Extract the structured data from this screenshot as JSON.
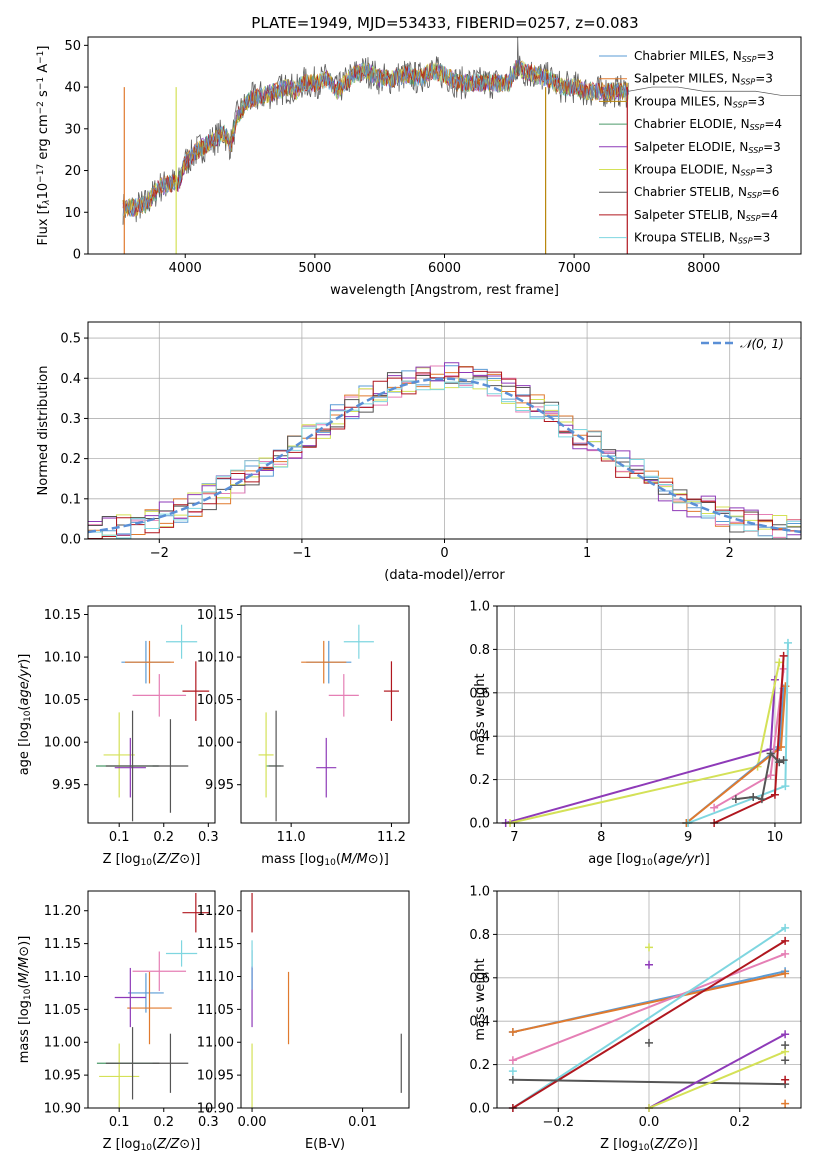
{
  "figure": {
    "title": "PLATE=1949, MJD=53433, FIBERID=0257, z=0.083"
  },
  "colors": {
    "Chabrier MILES": "#5a9bd5",
    "Salpeter MILES": "#e07a2e",
    "Kroupa MILES": "#b8860b",
    "Chabrier ELODIE": "#4c9a6a",
    "Salpeter ELODIE": "#8e3ab8",
    "Kroupa ELODIE": "#d4e157",
    "Chabrier STELIB": "#555555",
    "Salpeter STELIB": "#b0171f",
    "Kroupa STELIB": "#7fd6e0",
    "Pink": "#e57fb5",
    "Normal": "#5a8fd6"
  },
  "chart_data": [
    {
      "id": "spectrum",
      "type": "line",
      "xlabel": "wavelength [Angstrom, rest frame]",
      "ylabel": "Flux [f",
      "ylabel_parts": [
        "Flux [f",
        "λ",
        "10",
        "−17",
        " erg cm",
        "−2",
        " s",
        "−1",
        " A",
        "−1",
        "]"
      ],
      "xlim": [
        3250,
        8750
      ],
      "ylim": [
        0,
        52
      ],
      "xticks": [
        4000,
        5000,
        6000,
        7000,
        8000
      ],
      "yticks": [
        0,
        10,
        20,
        30,
        40,
        50
      ],
      "grid": false,
      "legend_position": "right",
      "legend": [
        {
          "label": "Chabrier MILES, N",
          "sub": "SSP",
          "tail": "=3",
          "color_key": "Chabrier MILES"
        },
        {
          "label": "Salpeter MILES, N",
          "sub": "SSP",
          "tail": "=3",
          "color_key": "Salpeter MILES"
        },
        {
          "label": "Kroupa MILES, N",
          "sub": "SSP",
          "tail": "=3",
          "color_key": "Kroupa MILES"
        },
        {
          "label": "Chabrier ELODIE, N",
          "sub": "SSP",
          "tail": "=4",
          "color_key": "Chabrier ELODIE"
        },
        {
          "label": "Salpeter ELODIE, N",
          "sub": "SSP",
          "tail": "=3",
          "color_key": "Salpeter ELODIE"
        },
        {
          "label": "Kroupa ELODIE, N",
          "sub": "SSP",
          "tail": "=3",
          "color_key": "Kroupa ELODIE"
        },
        {
          "label": "Chabrier STELIB, N",
          "sub": "SSP",
          "tail": "=6",
          "color_key": "Chabrier STELIB"
        },
        {
          "label": "Salpeter STELIB, N",
          "sub": "SSP",
          "tail": "=4",
          "color_key": "Salpeter STELIB"
        },
        {
          "label": "Kroupa STELIB, N",
          "sub": "SSP",
          "tail": "=3",
          "color_key": "Kroupa STELIB"
        }
      ],
      "continuum": [
        [
          3520,
          11
        ],
        [
          3600,
          11
        ],
        [
          3700,
          12
        ],
        [
          3800,
          16
        ],
        [
          3900,
          17
        ],
        [
          3950,
          17
        ],
        [
          4000,
          22
        ],
        [
          4100,
          25
        ],
        [
          4200,
          27
        ],
        [
          4300,
          29
        ],
        [
          4350,
          26
        ],
        [
          4400,
          33
        ],
        [
          4500,
          37
        ],
        [
          4600,
          38
        ],
        [
          4700,
          39
        ],
        [
          4800,
          40
        ],
        [
          4860,
          39
        ],
        [
          4900,
          41
        ],
        [
          5000,
          41
        ],
        [
          5100,
          42
        ],
        [
          5170,
          39
        ],
        [
          5200,
          40
        ],
        [
          5300,
          43
        ],
        [
          5400,
          44
        ],
        [
          5500,
          42
        ],
        [
          5600,
          42
        ],
        [
          5700,
          43
        ],
        [
          5800,
          42
        ],
        [
          5900,
          44
        ],
        [
          6000,
          43
        ],
        [
          6100,
          41
        ],
        [
          6200,
          41
        ],
        [
          6300,
          41
        ],
        [
          6400,
          41
        ],
        [
          6500,
          41
        ],
        [
          6560,
          45
        ],
        [
          6600,
          44
        ],
        [
          6700,
          43
        ],
        [
          6800,
          42
        ],
        [
          6900,
          40
        ],
        [
          7000,
          40
        ],
        [
          7100,
          39
        ],
        [
          7200,
          39
        ],
        [
          7300,
          39
        ],
        [
          7420,
          39
        ]
      ],
      "model_end": [
        [
          7420,
          39
        ],
        [
          7600,
          40
        ],
        [
          7800,
          40
        ],
        [
          8000,
          39
        ],
        [
          8200,
          39
        ],
        [
          8400,
          39
        ],
        [
          8600,
          38
        ],
        [
          8750,
          38
        ]
      ],
      "cut_lines": [
        {
          "x": 3530,
          "color_key": "Salpeter MILES"
        },
        {
          "x": 3930,
          "color_key": "Kroupa ELODIE"
        },
        {
          "x": 6780,
          "color_key": "Kroupa MILES"
        },
        {
          "x": 7410,
          "color_key": "Salpeter STELIB"
        }
      ]
    },
    {
      "id": "residuals",
      "type": "histogram",
      "xlabel": "(data-model)/error",
      "ylabel": "Normed distribution",
      "xlim": [
        -2.5,
        2.5
      ],
      "ylim": [
        0,
        0.54
      ],
      "xticks": [
        -2,
        -1,
        0,
        1,
        2
      ],
      "yticks": [
        0.0,
        0.1,
        0.2,
        0.3,
        0.4,
        0.5
      ],
      "grid": true,
      "legend_position": "top-right",
      "legend": "𝒩(0, 1)",
      "bin_width": 0.1
    },
    {
      "id": "age_vs_Z",
      "type": "scatter",
      "xlabel": "Z [log10(Z/Z⊙)]",
      "ylabel": "age  [log10(age/yr)]",
      "xlim": [
        0.03,
        0.315
      ],
      "ylim": [
        9.905,
        10.16
      ],
      "xticks": [
        0.1,
        0.2,
        0.3
      ],
      "yticks": [
        9.95,
        10.0,
        10.05,
        10.1,
        10.15
      ],
      "grid": false,
      "points": [
        {
          "x": 0.118,
          "y": 9.972,
          "xerr": 0.07,
          "yerr": 0.0,
          "color_key": "Chabrier ELODIE"
        },
        {
          "x": 0.16,
          "y": 10.094,
          "xerr": 0.055,
          "yerr": 0.025,
          "color_key": "Chabrier MILES"
        },
        {
          "x": 0.168,
          "y": 10.094,
          "xerr": 0.055,
          "yerr": 0.025,
          "color_key": "Salpeter MILES"
        },
        {
          "x": 0.19,
          "y": 10.055,
          "xerr": 0.06,
          "yerr": 0.025,
          "color_key": "Pink"
        },
        {
          "x": 0.24,
          "y": 10.118,
          "xerr": 0.035,
          "yerr": 0.02,
          "color_key": "Kroupa STELIB"
        },
        {
          "x": 0.272,
          "y": 10.06,
          "xerr": 0.03,
          "yerr": 0.035,
          "color_key": "Salpeter STELIB"
        },
        {
          "x": 0.1,
          "y": 9.985,
          "xerr": 0.035,
          "yerr": 0.05,
          "color_key": "Kroupa ELODIE"
        },
        {
          "x": 0.125,
          "y": 9.97,
          "xerr": 0.035,
          "yerr": 0.035,
          "color_key": "Salpeter ELODIE"
        },
        {
          "x": 0.215,
          "y": 9.972,
          "xerr": 0.04,
          "yerr": 0.055,
          "color_key": "Chabrier STELIB"
        },
        {
          "x": 0.13,
          "y": 9.972,
          "xerr": 0.06,
          "yerr": 0.065,
          "color_key": "Chabrier STELIB"
        }
      ]
    },
    {
      "id": "age_vs_mass",
      "type": "scatter",
      "xlabel": "mass [log10(M/M⊙)]",
      "ylabel": "",
      "xlim": [
        10.9,
        11.235
      ],
      "ylim": [
        9.905,
        10.16
      ],
      "xticks": [
        11.0,
        11.2
      ],
      "yticks": [
        9.95,
        10.0,
        10.05,
        10.1,
        10.15
      ],
      "grid": false,
      "points": [
        {
          "x": 10.965,
          "y": 9.972,
          "xerr": 0.015,
          "yerr": 0.0,
          "color_key": "Chabrier ELODIE"
        },
        {
          "x": 11.075,
          "y": 10.094,
          "xerr": 0.045,
          "yerr": 0.025,
          "color_key": "Chabrier MILES"
        },
        {
          "x": 11.065,
          "y": 10.094,
          "xerr": 0.045,
          "yerr": 0.025,
          "color_key": "Salpeter MILES"
        },
        {
          "x": 11.105,
          "y": 10.055,
          "xerr": 0.03,
          "yerr": 0.025,
          "color_key": "Pink"
        },
        {
          "x": 11.135,
          "y": 10.118,
          "xerr": 0.03,
          "yerr": 0.02,
          "color_key": "Kroupa STELIB"
        },
        {
          "x": 11.2,
          "y": 10.06,
          "xerr": 0.015,
          "yerr": 0.035,
          "color_key": "Salpeter STELIB"
        },
        {
          "x": 10.95,
          "y": 9.985,
          "xerr": 0.015,
          "yerr": 0.05,
          "color_key": "Kroupa ELODIE"
        },
        {
          "x": 11.07,
          "y": 9.97,
          "xerr": 0.02,
          "yerr": 0.035,
          "color_key": "Salpeter ELODIE"
        },
        {
          "x": 10.97,
          "y": 9.972,
          "xerr": 0.015,
          "yerr": 0.065,
          "color_key": "Chabrier STELIB"
        }
      ]
    },
    {
      "id": "mass_weight_vs_age",
      "type": "line",
      "xlabel": "age  [log10(age/yr)]",
      "ylabel": "mass weight",
      "xlim": [
        6.8,
        10.3
      ],
      "ylim": [
        0,
        1.0
      ],
      "xticks": [
        7,
        8,
        9,
        10
      ],
      "yticks": [
        0.0,
        0.2,
        0.4,
        0.6,
        0.8,
        1.0
      ],
      "grid": true,
      "series": [
        {
          "color_key": "Salpeter ELODIE",
          "x": [
            6.9,
            9.95,
            10.0
          ],
          "y": [
            0.0,
            0.34,
            0.66
          ]
        },
        {
          "color_key": "Kroupa ELODIE",
          "x": [
            6.95,
            9.8,
            10.05
          ],
          "y": [
            0.0,
            0.26,
            0.74
          ]
        },
        {
          "color_key": "Chabrier MILES",
          "x": [
            8.98,
            10.05,
            10.1
          ],
          "y": [
            0.0,
            0.35,
            0.62
          ]
        },
        {
          "color_key": "Salpeter MILES",
          "x": [
            8.98,
            10.07,
            10.12
          ],
          "y": [
            0.0,
            0.35,
            0.63
          ]
        },
        {
          "color_key": "Pink",
          "x": [
            9.3,
            9.95,
            10.1
          ],
          "y": [
            0.07,
            0.22,
            0.71
          ]
        },
        {
          "color_key": "Kroupa STELIB",
          "x": [
            9.0,
            10.12,
            10.15
          ],
          "y": [
            0.0,
            0.17,
            0.83
          ]
        },
        {
          "color_key": "Salpeter STELIB",
          "x": [
            9.3,
            10.0,
            10.1
          ],
          "y": [
            0.0,
            0.13,
            0.77
          ]
        },
        {
          "color_key": "Chabrier STELIB",
          "x": [
            9.55,
            9.75,
            9.85,
            9.95,
            10.05,
            10.1
          ],
          "y": [
            0.11,
            0.12,
            0.11,
            0.32,
            0.28,
            0.29
          ]
        }
      ]
    },
    {
      "id": "mass_vs_Z",
      "type": "scatter",
      "xlabel": "Z [log10(Z/Z⊙)]",
      "ylabel": "mass [log10(M/M⊙)]",
      "xlim": [
        0.03,
        0.315
      ],
      "ylim": [
        10.9,
        11.23
      ],
      "xticks": [
        0.1,
        0.2,
        0.3
      ],
      "yticks": [
        10.9,
        10.95,
        11.0,
        11.05,
        11.1,
        11.15,
        11.2
      ],
      "grid": false,
      "points": [
        {
          "x": 0.12,
          "y": 10.968,
          "xerr": 0.07,
          "yerr": 0.0,
          "color_key": "Chabrier ELODIE"
        },
        {
          "x": 0.16,
          "y": 11.075,
          "xerr": 0.04,
          "yerr": 0.03,
          "color_key": "Chabrier MILES"
        },
        {
          "x": 0.168,
          "y": 11.052,
          "xerr": 0.05,
          "yerr": 0.055,
          "color_key": "Salpeter MILES"
        },
        {
          "x": 0.19,
          "y": 11.108,
          "xerr": 0.06,
          "yerr": 0.03,
          "color_key": "Pink"
        },
        {
          "x": 0.24,
          "y": 11.135,
          "xerr": 0.035,
          "yerr": 0.02,
          "color_key": "Kroupa STELIB"
        },
        {
          "x": 0.272,
          "y": 11.197,
          "xerr": 0.03,
          "yerr": 0.03,
          "color_key": "Salpeter STELIB"
        },
        {
          "x": 0.1,
          "y": 10.948,
          "xerr": 0.045,
          "yerr": 0.05,
          "color_key": "Kroupa ELODIE"
        },
        {
          "x": 0.125,
          "y": 11.068,
          "xerr": 0.035,
          "yerr": 0.045,
          "color_key": "Salpeter ELODIE"
        },
        {
          "x": 0.215,
          "y": 10.968,
          "xerr": 0.04,
          "yerr": 0.045,
          "color_key": "Chabrier STELIB"
        },
        {
          "x": 0.13,
          "y": 10.968,
          "xerr": 0.06,
          "yerr": 0.055,
          "color_key": "Chabrier STELIB"
        }
      ]
    },
    {
      "id": "mass_vs_EBV",
      "type": "scatter",
      "xlabel": "E(B-V)",
      "ylabel": "",
      "xlim": [
        -0.001,
        0.0142
      ],
      "ylim": [
        10.9,
        11.23
      ],
      "xticks": [
        0.0,
        0.01
      ],
      "yticks": [
        10.9,
        10.95,
        11.0,
        11.05,
        11.1,
        11.15,
        11.2
      ],
      "grid": false,
      "points": [
        {
          "x": 0.0,
          "y": 11.197,
          "xerr": 0.0,
          "yerr": 0.03,
          "color_key": "Salpeter STELIB"
        },
        {
          "x": 0.0,
          "y": 11.068,
          "xerr": 0.0,
          "yerr": 0.045,
          "color_key": "Salpeter ELODIE"
        },
        {
          "x": 0.0,
          "y": 11.11,
          "xerr": 0.0,
          "yerr": 0.03,
          "color_key": "Chabrier MILES"
        },
        {
          "x": 0.0,
          "y": 11.135,
          "xerr": 0.0,
          "yerr": 0.02,
          "color_key": "Kroupa STELIB"
        },
        {
          "x": 0.0,
          "y": 10.948,
          "xerr": 0.0,
          "yerr": 0.05,
          "color_key": "Kroupa ELODIE"
        },
        {
          "x": 0.0033,
          "y": 11.052,
          "xerr": 0.0,
          "yerr": 0.055,
          "color_key": "Salpeter MILES"
        },
        {
          "x": 0.0135,
          "y": 10.968,
          "xerr": 0.0,
          "yerr": 0.045,
          "color_key": "Chabrier STELIB"
        }
      ]
    },
    {
      "id": "mass_weight_vs_Z",
      "type": "line",
      "xlabel": "Z [log10(Z/Z⊙)]",
      "ylabel": "mass weight",
      "xlim": [
        -0.335,
        0.335
      ],
      "ylim": [
        0,
        1.0
      ],
      "xticks": [
        -0.2,
        0.0,
        0.2
      ],
      "yticks": [
        0.0,
        0.2,
        0.4,
        0.6,
        0.8,
        1.0
      ],
      "grid": true,
      "series": [
        {
          "color_key": "Chabrier MILES",
          "x": [
            -0.3,
            0.3
          ],
          "y": [
            0.35,
            0.63
          ]
        },
        {
          "color_key": "Salpeter MILES",
          "x": [
            -0.3,
            0.3
          ],
          "y": [
            0.35,
            0.62
          ]
        },
        {
          "color_key": "Pink",
          "x": [
            -0.3,
            0.3
          ],
          "y": [
            0.22,
            0.71
          ]
        },
        {
          "color_key": "Kroupa STELIB",
          "x": [
            -0.3,
            0.3
          ],
          "y": [
            0.0,
            0.83
          ]
        },
        {
          "color_key": "Salpeter STELIB",
          "x": [
            -0.3,
            0.3
          ],
          "y": [
            0.0,
            0.77
          ]
        },
        {
          "color_key": "Chabrier STELIB",
          "x": [
            -0.3,
            0.3
          ],
          "y": [
            0.13,
            0.11
          ]
        },
        {
          "color_key": "Salpeter ELODIE",
          "x": [
            0.0,
            0.3
          ],
          "y": [
            0.0,
            0.34
          ]
        },
        {
          "color_key": "Kroupa ELODIE",
          "x": [
            0.0,
            0.3
          ],
          "y": [
            0.0,
            0.26
          ]
        }
      ],
      "markers": [
        {
          "x": 0.0,
          "y": 0.74,
          "color_key": "Kroupa ELODIE"
        },
        {
          "x": 0.0,
          "y": 0.66,
          "color_key": "Salpeter ELODIE"
        },
        {
          "x": 0.0,
          "y": 0.3,
          "color_key": "Chabrier STELIB"
        },
        {
          "x": -0.3,
          "y": 0.17,
          "color_key": "Kroupa STELIB"
        },
        {
          "x": 0.3,
          "y": 0.02,
          "color_key": "Salpeter MILES"
        },
        {
          "x": 0.3,
          "y": 0.22,
          "color_key": "Chabrier STELIB"
        },
        {
          "x": 0.3,
          "y": 0.29,
          "color_key": "Chabrier STELIB"
        },
        {
          "x": 0.3,
          "y": 0.13,
          "color_key": "Salpeter STELIB"
        }
      ]
    }
  ]
}
